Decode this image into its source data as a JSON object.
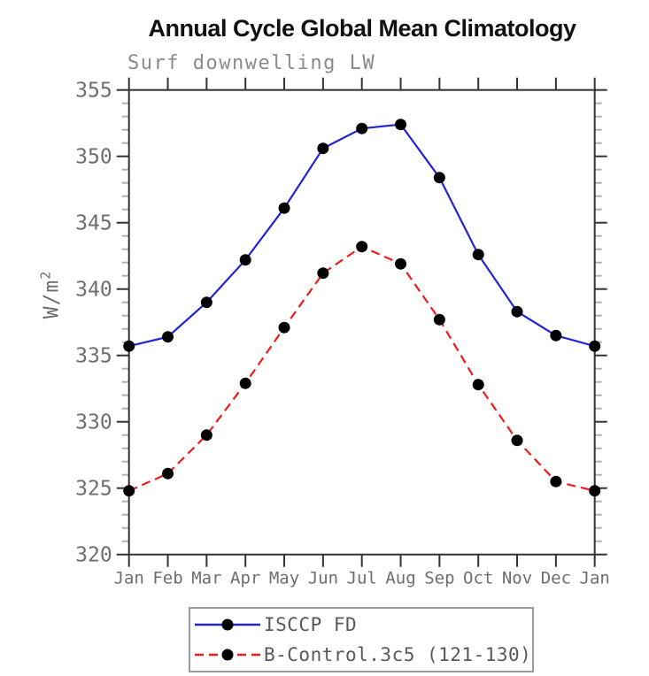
{
  "chart_data": {
    "type": "line",
    "title": "Annual Cycle Global Mean Climatology",
    "subtitle": "Surf downwelling LW",
    "ylabel": "W/m",
    "ylabel_exponent": "2",
    "xlabel": "",
    "x_categories": [
      "Jan",
      "Feb",
      "Mar",
      "Apr",
      "May",
      "Jun",
      "Jul",
      "Aug",
      "Sep",
      "Oct",
      "Nov",
      "Dec",
      "Jan"
    ],
    "ylim": [
      320,
      355
    ],
    "ytick_major_step": 5,
    "ytick_minor_step": 1,
    "ytick_labels": [
      "320",
      "325",
      "330",
      "335",
      "340",
      "345",
      "350",
      "355"
    ],
    "grid": false,
    "frame": "box",
    "legend_position": "bottom-center",
    "axis_color": "#333333",
    "minor_tick_color": "#b0b0b0",
    "tick_label_color": "#6e6e6e",
    "series": [
      {
        "name": "ISCCP FD",
        "color": "#2323d6",
        "line_style": "solid",
        "marker": "circle",
        "marker_color": "#000000",
        "values": [
          335.7,
          336.4,
          339.0,
          342.2,
          346.1,
          350.6,
          352.1,
          352.4,
          348.4,
          342.6,
          338.3,
          336.5,
          335.7
        ]
      },
      {
        "name": "B-Control.3c5 (121-130)",
        "color": "#ee1c1c",
        "line_style": "dashed",
        "marker": "circle",
        "marker_color": "#000000",
        "values": [
          324.8,
          326.1,
          329.0,
          332.9,
          337.1,
          341.2,
          343.2,
          341.9,
          337.7,
          332.8,
          328.6,
          325.5,
          324.8
        ]
      }
    ]
  }
}
